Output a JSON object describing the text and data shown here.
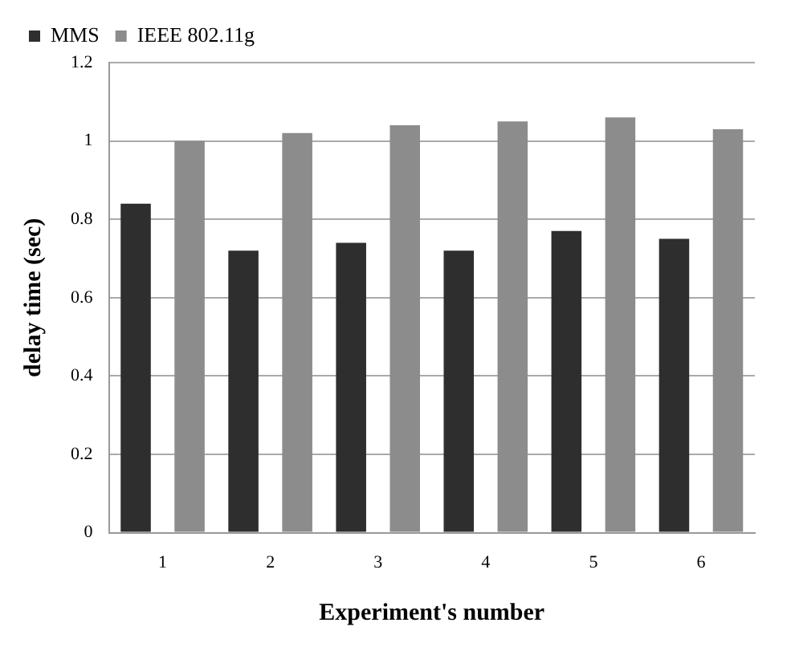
{
  "chart_data": {
    "type": "bar",
    "xlabel": "Experiment's number",
    "ylabel": "delay time (sec)",
    "categories": [
      "1",
      "2",
      "3",
      "4",
      "5",
      "6"
    ],
    "series": [
      {
        "name": "MMS",
        "color": "#2e2e2e",
        "values": [
          0.84,
          0.72,
          0.74,
          0.72,
          0.77,
          0.75
        ]
      },
      {
        "name": "IEEE 802.11g",
        "color": "#8c8c8c",
        "values": [
          1.0,
          1.02,
          1.04,
          1.05,
          1.06,
          1.03
        ]
      }
    ],
    "ylim": [
      0,
      1.2
    ],
    "yticks": [
      0,
      0.2,
      0.4,
      0.6,
      0.8,
      1,
      1.2
    ],
    "grid": "y",
    "legend": "top left"
  }
}
